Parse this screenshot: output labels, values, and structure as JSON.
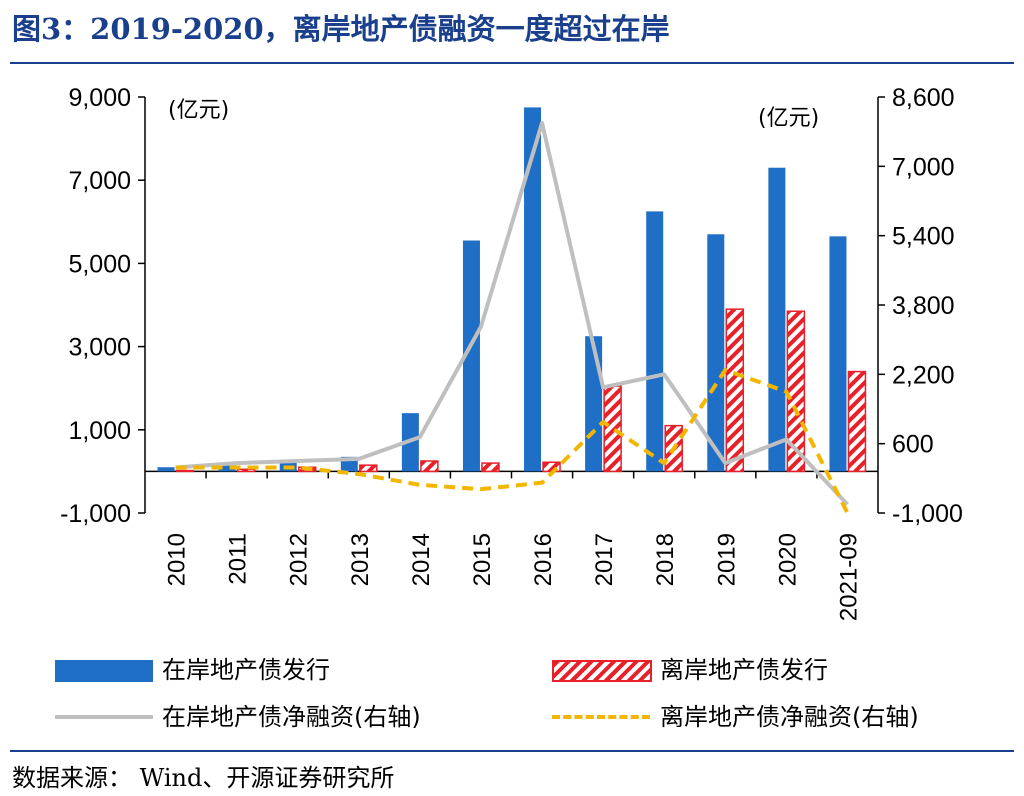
{
  "header": {
    "title": "图3：2019-2020，离岸地产债融资一度超过在岸"
  },
  "footer": {
    "source": "数据来源： Wind、开源证券研究所"
  },
  "chart_data": {
    "type": "bar",
    "categories": [
      "2010",
      "2011",
      "2012",
      "2013",
      "2014",
      "2015",
      "2016",
      "2017",
      "2018",
      "2019",
      "2020",
      "2021-09"
    ],
    "left_axis": {
      "unit": "(亿元)",
      "ylim": [
        -1000,
        9000
      ],
      "ticks": [
        "9,000",
        "7,000",
        "5,000",
        "3,000",
        "1,000",
        "-1,000"
      ],
      "tick_values": [
        9000,
        7000,
        5000,
        3000,
        1000,
        -1000
      ]
    },
    "right_axis": {
      "unit": "(亿元)",
      "ylim": [
        -1000,
        8600
      ],
      "ticks": [
        "8,600",
        "7,000",
        "5,400",
        "3,800",
        "2,200",
        "600",
        "-1,000"
      ],
      "tick_values": [
        8600,
        7000,
        5400,
        3800,
        2200,
        600,
        -1000
      ]
    },
    "series": [
      {
        "name": "在岸地产债发行",
        "kind": "bar",
        "axis": "left",
        "color": "#1f6fc6",
        "values": [
          100,
          150,
          250,
          350,
          1400,
          5550,
          8750,
          3250,
          6250,
          5700,
          7300,
          5650
        ]
      },
      {
        "name": "离岸地产债发行",
        "kind": "bar-hatched",
        "axis": "left",
        "color": "#e8202a",
        "values": [
          20,
          50,
          100,
          150,
          250,
          200,
          220,
          2050,
          1100,
          3900,
          3850,
          2400
        ]
      },
      {
        "name": "在岸地产债净融资(右轴)",
        "kind": "line",
        "axis": "right",
        "color": "#bfbfbf",
        "values": [
          50,
          150,
          200,
          250,
          750,
          3300,
          8000,
          1900,
          2200,
          150,
          700,
          -800
        ]
      },
      {
        "name": "离岸地产债净融资(右轴)",
        "kind": "dashed-line",
        "axis": "right",
        "color": "#f2b600",
        "values": [
          50,
          50,
          50,
          -100,
          -350,
          -450,
          -300,
          1100,
          150,
          2300,
          1800,
          -1000
        ]
      }
    ]
  }
}
